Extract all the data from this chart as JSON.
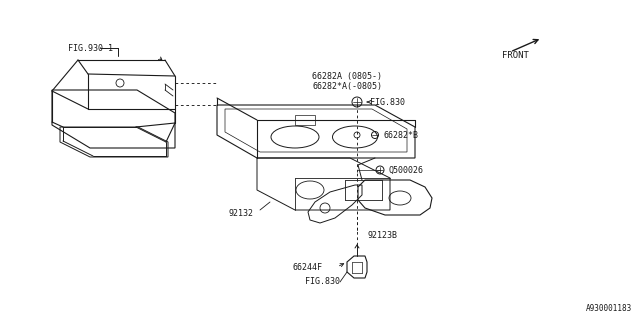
{
  "bg_color": "#ffffff",
  "line_color": "#1a1a1a",
  "text_color": "#1a1a1a",
  "watermark": "A930001183",
  "labels": {
    "fig830_top": "FIG.830",
    "part66244F": "66244F",
    "part92123B": "92123B",
    "part92132": "92132",
    "partQ500026": "Q500026",
    "part66282B": "66282*B",
    "fig830_bottom": "FIG.830",
    "part66282A_1": "66282*A(-0805)",
    "part66282A_2": "66282A (0805-)",
    "fig930": "FIG.930-1",
    "front": "FRONT"
  },
  "font_size": 6.5,
  "small_font": 6.0
}
